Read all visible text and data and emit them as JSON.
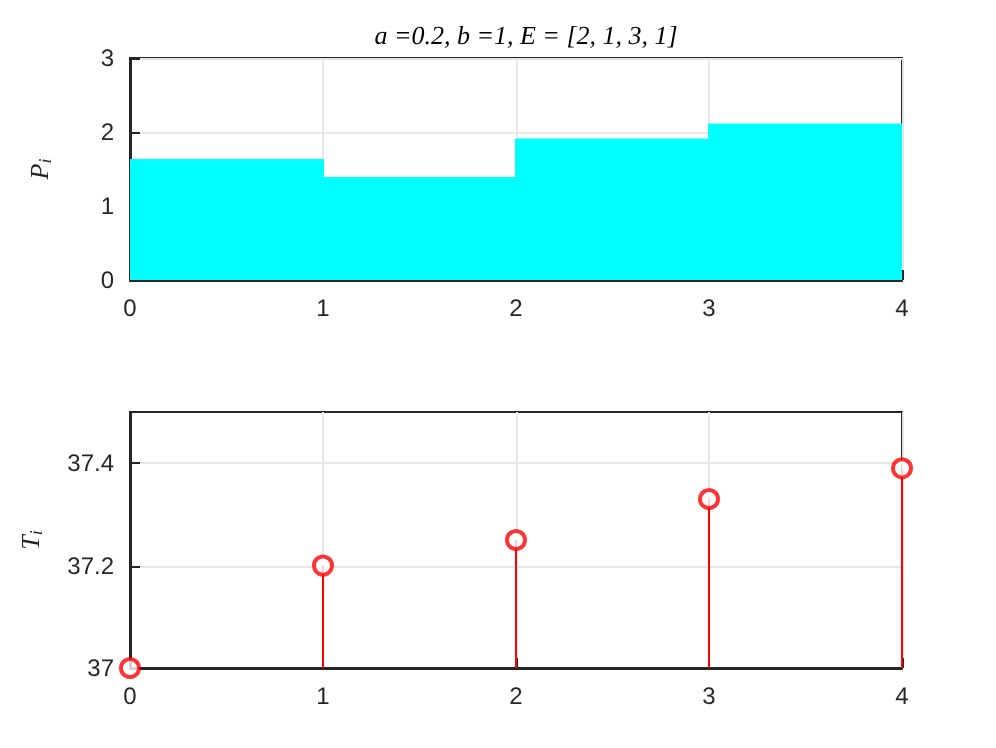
{
  "chart_data": [
    {
      "type": "area",
      "title": "a =0.2, b =1, E = [2, 1, 3, 1]",
      "ylabel": "P$_{i}$",
      "x": [
        0,
        1,
        1,
        2,
        2,
        3,
        3,
        4
      ],
      "series": [
        {
          "color": "#00ffff",
          "values": [
            1.62,
            1.62,
            1.38,
            1.38,
            1.9,
            1.9,
            2.1,
            2.1
          ]
        }
      ],
      "xlim": [
        0,
        4
      ],
      "xticks": [
        0,
        1,
        2,
        3,
        4
      ],
      "ylim": [
        0,
        3
      ],
      "yticks": [
        0,
        1,
        2,
        3
      ],
      "grid": true
    },
    {
      "type": "lollipop",
      "ylabel": "T$_{i}$",
      "x": [
        0,
        1,
        2,
        3,
        4
      ],
      "series": [
        {
          "color": "#ff0000",
          "values": [
            37.0,
            37.2,
            37.25,
            37.33,
            37.39
          ]
        }
      ],
      "xlim": [
        0,
        4
      ],
      "xticks": [
        0,
        1,
        2,
        3,
        4
      ],
      "ylim": [
        37,
        37.5
      ],
      "yticks": [
        37,
        37.2,
        37.4
      ],
      "grid": true,
      "marker": "circle"
    }
  ]
}
